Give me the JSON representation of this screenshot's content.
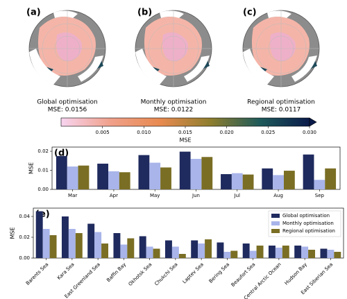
{
  "maps": [
    {
      "label": "(a)",
      "title": "Global optimisation",
      "mse": "MSE: 0.0156"
    },
    {
      "label": "(b)",
      "title": "Monthly optimisation",
      "mse": "MSE: 0.0122"
    },
    {
      "label": "(c)",
      "title": "Regional optimisation",
      "mse": "MSE: 0.0117"
    }
  ],
  "chart_data": [
    {
      "type": "colorbar",
      "xlabel": "MSE",
      "xlim": [
        0,
        0.03
      ],
      "xticks": [
        0.005,
        {
          "value": 0.01,
          "label": "0.010"
        },
        0.015,
        {
          "value": 0.02,
          "label": "0.020"
        },
        0.025,
        {
          "value": 0.03,
          "label": "0.030"
        }
      ],
      "colors": [
        "#f7d4f0",
        "#f0a08a",
        "#e88a50",
        "#8f7e2e",
        "#1e5a5a",
        "#0a1a4a"
      ],
      "extend": "max"
    },
    {
      "type": "bar",
      "panel_label": "(d)",
      "ylabel": "MSE",
      "categories": [
        "Mar",
        "Apr",
        "May",
        "Jun",
        "Jul",
        "Aug",
        "Sep"
      ],
      "series": [
        {
          "color": "#1f2a5e",
          "values": [
            0.0175,
            0.0135,
            0.018,
            0.0198,
            0.008,
            0.011,
            0.0183
          ]
        },
        {
          "color": "#a8b4ea",
          "values": [
            0.012,
            0.0095,
            0.014,
            0.016,
            0.0085,
            0.0075,
            0.005
          ]
        },
        {
          "color": "#7a6e24",
          "values": [
            0.0125,
            0.009,
            0.0115,
            0.017,
            0.0078,
            0.0098,
            0.011
          ]
        }
      ],
      "ylim": [
        0,
        0.0222
      ],
      "yticks": [
        {
          "value": 0,
          "label": "0.00"
        },
        0.01,
        0.02
      ]
    },
    {
      "type": "bar",
      "panel_label": "(e)",
      "ylabel": "MSE",
      "xtick_rotation": 45,
      "legend": "upper right",
      "categories": [
        "Barents Sea",
        "Kara Sea",
        "East Greenland Sea",
        "Baffin Bay",
        "Okhotsk Sea",
        "Chukchi Sea",
        "Laptev Sea",
        "Bering Sea",
        "Beaufort Sea",
        "Central Arctic Ocean",
        "Hudson Bay",
        "East Siberian Sea"
      ],
      "series": [
        {
          "name": "Global optimisation",
          "color": "#1f2a5e",
          "values": [
            0.045,
            0.04,
            0.033,
            0.024,
            0.021,
            0.017,
            0.017,
            0.015,
            0.014,
            0.012,
            0.012,
            0.009
          ]
        },
        {
          "name": "Monthly optimisation",
          "color": "#a8b4ea",
          "values": [
            0.028,
            0.028,
            0.025,
            0.013,
            0.011,
            0.011,
            0.014,
            0.006,
            0.007,
            0.01,
            0.011,
            0.008
          ]
        },
        {
          "name": "Regional optimisation",
          "color": "#7a6e24",
          "values": [
            0.022,
            0.024,
            0.014,
            0.019,
            0.009,
            0.004,
            0.018,
            0.007,
            0.012,
            0.012,
            0.008,
            0.006
          ]
        }
      ],
      "ylim": [
        0,
        0.048
      ],
      "yticks": [
        {
          "value": 0,
          "label": "0.00"
        },
        0.02,
        0.04
      ]
    }
  ]
}
